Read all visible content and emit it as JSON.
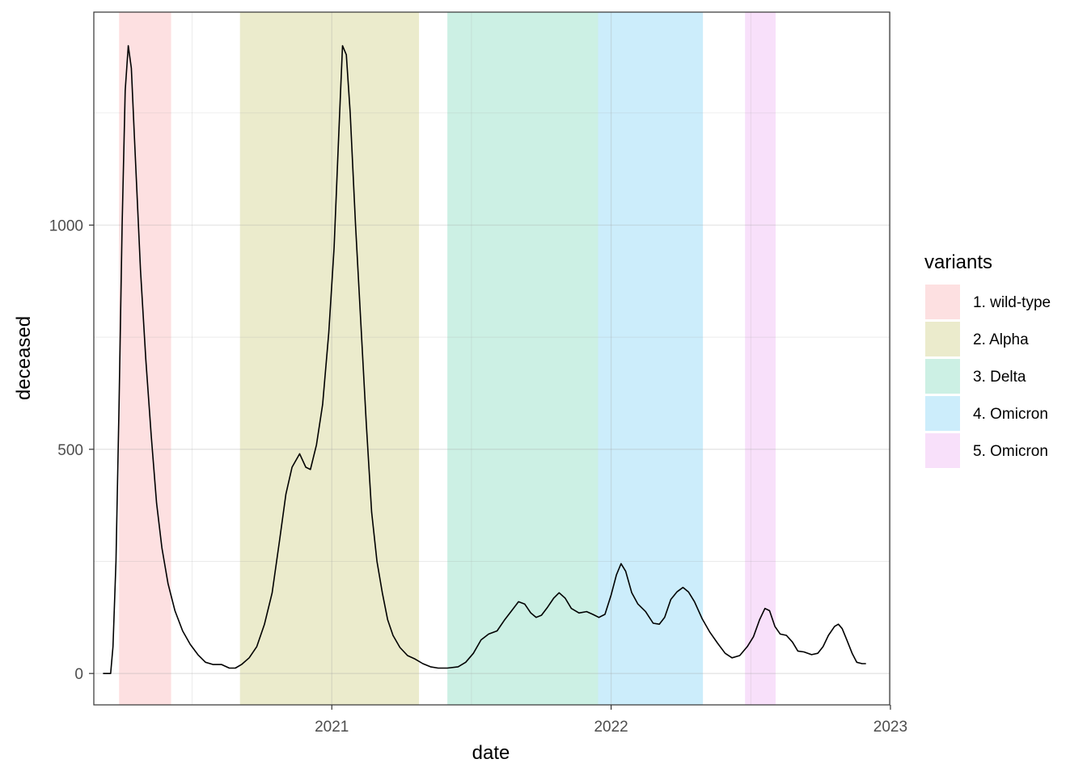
{
  "chart_data": {
    "type": "line",
    "xlabel": "date",
    "ylabel": "deceased",
    "xlim": [
      "2020-02-25",
      "2022-12-31"
    ],
    "ylim": [
      -70,
      1475
    ],
    "x_ticks": [
      "2021",
      "2022",
      "2023"
    ],
    "x_tick_dates": [
      "2021-01-01",
      "2022-01-01",
      "2023-01-01"
    ],
    "y_ticks": [
      0,
      500,
      1000
    ],
    "grid": true,
    "legend": {
      "title": "variants",
      "position": "right",
      "entries": [
        "1. wild-type",
        "2. Alpha",
        "3. Delta",
        "4. Omicron",
        "5. Omicron"
      ]
    },
    "bands": [
      {
        "label": "1. wild-type",
        "start": "2020-03-29",
        "end": "2020-06-05",
        "color": "#fde0e1"
      },
      {
        "label": "2. Alpha",
        "start": "2020-09-03",
        "end": "2021-04-25",
        "color": "#ebebcc"
      },
      {
        "label": "3. Delta",
        "start": "2021-06-01",
        "end": "2021-12-15",
        "color": "#ccf0e4"
      },
      {
        "label": "4. Omicron",
        "start": "2021-12-15",
        "end": "2022-05-01",
        "color": "#ccedfb"
      },
      {
        "label": "5. Omicron",
        "start": "2022-06-25",
        "end": "2022-08-04",
        "color": "#f8e0fa"
      }
    ],
    "series": [
      {
        "color": "#000000",
        "points": [
          [
            "2020-03-08",
            0
          ],
          [
            "2020-03-18",
            0
          ],
          [
            "2020-03-21",
            60
          ],
          [
            "2020-03-25",
            250
          ],
          [
            "2020-03-29",
            600
          ],
          [
            "2020-04-02",
            1000
          ],
          [
            "2020-04-06",
            1300
          ],
          [
            "2020-04-10",
            1400
          ],
          [
            "2020-04-14",
            1350
          ],
          [
            "2020-04-18",
            1200
          ],
          [
            "2020-04-22",
            1050
          ],
          [
            "2020-04-26",
            900
          ],
          [
            "2020-05-03",
            700
          ],
          [
            "2020-05-10",
            530
          ],
          [
            "2020-05-17",
            380
          ],
          [
            "2020-05-24",
            280
          ],
          [
            "2020-06-01",
            200
          ],
          [
            "2020-06-10",
            140
          ],
          [
            "2020-06-20",
            95
          ],
          [
            "2020-06-30",
            65
          ],
          [
            "2020-07-10",
            42
          ],
          [
            "2020-07-20",
            25
          ],
          [
            "2020-07-30",
            20
          ],
          [
            "2020-08-10",
            20
          ],
          [
            "2020-08-20",
            12
          ],
          [
            "2020-08-28",
            12
          ],
          [
            "2020-09-05",
            20
          ],
          [
            "2020-09-15",
            35
          ],
          [
            "2020-09-25",
            60
          ],
          [
            "2020-10-05",
            110
          ],
          [
            "2020-10-15",
            180
          ],
          [
            "2020-10-25",
            300
          ],
          [
            "2020-11-02",
            400
          ],
          [
            "2020-11-10",
            460
          ],
          [
            "2020-11-20",
            490
          ],
          [
            "2020-11-28",
            460
          ],
          [
            "2020-12-04",
            455
          ],
          [
            "2020-12-12",
            510
          ],
          [
            "2020-12-20",
            600
          ],
          [
            "2020-12-28",
            760
          ],
          [
            "2021-01-04",
            950
          ],
          [
            "2021-01-10",
            1200
          ],
          [
            "2021-01-15",
            1400
          ],
          [
            "2021-01-20",
            1380
          ],
          [
            "2021-01-25",
            1250
          ],
          [
            "2021-02-01",
            1000
          ],
          [
            "2021-02-08",
            780
          ],
          [
            "2021-02-15",
            560
          ],
          [
            "2021-02-22",
            360
          ],
          [
            "2021-03-01",
            250
          ],
          [
            "2021-03-08",
            180
          ],
          [
            "2021-03-15",
            120
          ],
          [
            "2021-03-22",
            85
          ],
          [
            "2021-03-31",
            58
          ],
          [
            "2021-04-10",
            40
          ],
          [
            "2021-04-20",
            32
          ],
          [
            "2021-04-30",
            22
          ],
          [
            "2021-05-10",
            15
          ],
          [
            "2021-05-20",
            12
          ],
          [
            "2021-06-01",
            12
          ],
          [
            "2021-06-15",
            15
          ],
          [
            "2021-06-25",
            25
          ],
          [
            "2021-07-05",
            45
          ],
          [
            "2021-07-15",
            75
          ],
          [
            "2021-07-25",
            88
          ],
          [
            "2021-08-05",
            95
          ],
          [
            "2021-08-15",
            120
          ],
          [
            "2021-08-25",
            142
          ],
          [
            "2021-09-02",
            160
          ],
          [
            "2021-09-10",
            155
          ],
          [
            "2021-09-18",
            135
          ],
          [
            "2021-09-25",
            125
          ],
          [
            "2021-10-02",
            130
          ],
          [
            "2021-10-10",
            148
          ],
          [
            "2021-10-18",
            168
          ],
          [
            "2021-10-25",
            180
          ],
          [
            "2021-11-02",
            168
          ],
          [
            "2021-11-10",
            145
          ],
          [
            "2021-11-20",
            135
          ],
          [
            "2021-11-30",
            138
          ],
          [
            "2021-12-08",
            132
          ],
          [
            "2021-12-16",
            125
          ],
          [
            "2021-12-24",
            132
          ],
          [
            "2022-01-01",
            175
          ],
          [
            "2022-01-08",
            220
          ],
          [
            "2022-01-14",
            245
          ],
          [
            "2022-01-20",
            228
          ],
          [
            "2022-01-28",
            180
          ],
          [
            "2022-02-05",
            155
          ],
          [
            "2022-02-15",
            138
          ],
          [
            "2022-02-25",
            112
          ],
          [
            "2022-03-05",
            110
          ],
          [
            "2022-03-12",
            125
          ],
          [
            "2022-03-20",
            165
          ],
          [
            "2022-03-28",
            182
          ],
          [
            "2022-04-05",
            192
          ],
          [
            "2022-04-12",
            182
          ],
          [
            "2022-04-20",
            160
          ],
          [
            "2022-04-30",
            122
          ],
          [
            "2022-05-10",
            92
          ],
          [
            "2022-05-20",
            68
          ],
          [
            "2022-05-30",
            45
          ],
          [
            "2022-06-08",
            35
          ],
          [
            "2022-06-18",
            40
          ],
          [
            "2022-06-28",
            60
          ],
          [
            "2022-07-06",
            82
          ],
          [
            "2022-07-14",
            120
          ],
          [
            "2022-07-21",
            145
          ],
          [
            "2022-07-27",
            140
          ],
          [
            "2022-08-03",
            105
          ],
          [
            "2022-08-10",
            88
          ],
          [
            "2022-08-18",
            85
          ],
          [
            "2022-08-26",
            70
          ],
          [
            "2022-09-02",
            50
          ],
          [
            "2022-09-10",
            48
          ],
          [
            "2022-09-20",
            42
          ],
          [
            "2022-09-28",
            45
          ],
          [
            "2022-10-05",
            60
          ],
          [
            "2022-10-12",
            85
          ],
          [
            "2022-10-20",
            105
          ],
          [
            "2022-10-25",
            110
          ],
          [
            "2022-10-30",
            100
          ],
          [
            "2022-11-05",
            75
          ],
          [
            "2022-11-12",
            45
          ],
          [
            "2022-11-18",
            25
          ],
          [
            "2022-11-25",
            22
          ],
          [
            "2022-11-30",
            22
          ]
        ]
      }
    ]
  }
}
